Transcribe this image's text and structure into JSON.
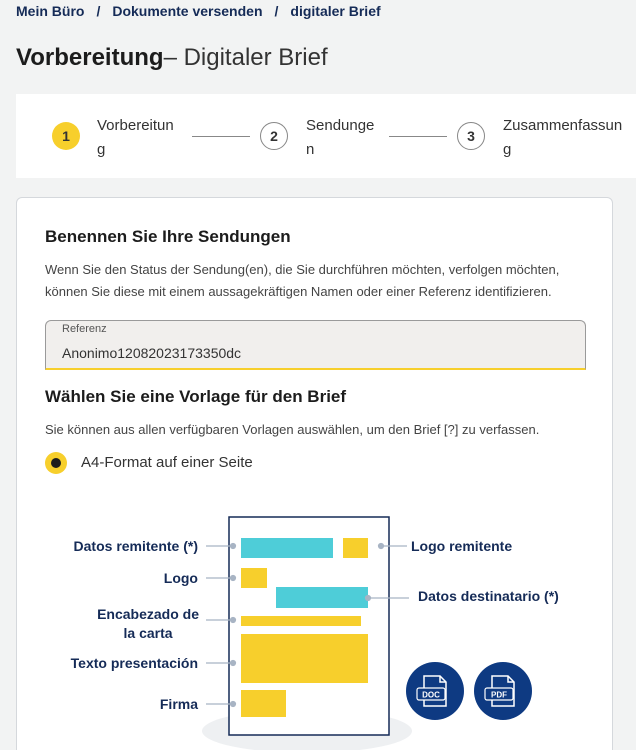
{
  "breadcrumb": {
    "items": [
      "Mein Büro",
      "Dokumente versenden",
      "digitaler Brief"
    ],
    "separator": "/"
  },
  "title": {
    "strong": "Vorbereitung",
    "rest": "– Digitaler Brief"
  },
  "stepper": {
    "steps": [
      {
        "number": "1",
        "label_line1": "Vorbereitun",
        "label_line2": "g",
        "state": "active"
      },
      {
        "number": "2",
        "label_line1": "Sendunge",
        "label_line2": "n",
        "state": "inactive"
      },
      {
        "number": "3",
        "label_line1": "Zusammenfassun",
        "label_line2": "g",
        "state": "inactive"
      }
    ]
  },
  "section1": {
    "heading": "Benennen Sie Ihre Sendungen",
    "text_line1": "Wenn Sie den Status der Sendung(en), die Sie durchführen möchten, verfolgen möchten,",
    "text_line2": "können Sie diese mit einem aussagekräftigen Namen oder einer Referenz identifizieren.",
    "field": {
      "label": "Referenz",
      "value": "Anonimo12082023173350dc"
    }
  },
  "section2": {
    "heading": "Wählen Sie eine Vorlage für den Brief",
    "text": "Sie können aus allen verfügbaren Vorlagen auswählen, um den Brief [?] zu verfassen.",
    "option": {
      "label": "A4-Format auf einer Seite",
      "selected": true
    }
  },
  "diagram": {
    "labels": {
      "datos_remitente": "Datos remitente (*)",
      "logo": "Logo",
      "encabezado_line1": "Encabezado de",
      "encabezado_line2": "la carta",
      "texto": "Texto presentación",
      "firma": "Firma",
      "logo_remitente": "Logo remitente",
      "datos_destinatario": "Datos destinatario (*)"
    },
    "badges": [
      "DOC",
      "PDF"
    ]
  },
  "colors": {
    "accent": "#f7cf2c",
    "navy": "#152b57",
    "cyan": "#4ecdd8",
    "badge": "#0e3a82"
  }
}
